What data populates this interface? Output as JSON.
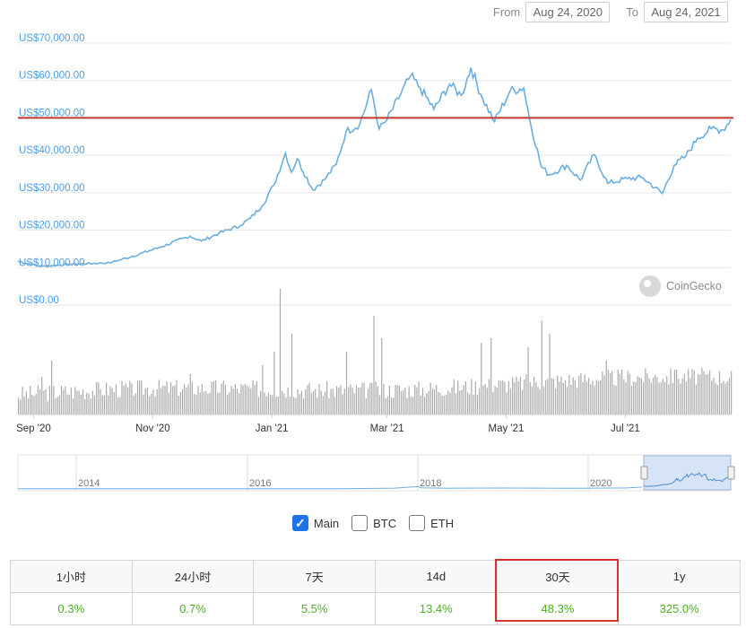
{
  "range": {
    "from_label": "From",
    "from_value": "Aug 24, 2020",
    "to_label": "To",
    "to_value": "Aug 24, 2021"
  },
  "chart_data": {
    "type": "line",
    "ylim": [
      0,
      70000
    ],
    "ytick_labels": [
      "US$70,000.00",
      "US$60,000.00",
      "US$50,000.00",
      "US$40,000.00",
      "US$30,000.00",
      "US$20,000.00",
      "US$10,000.00",
      "US$0.00"
    ],
    "ytick_values": [
      70000,
      60000,
      50000,
      40000,
      30000,
      20000,
      10000,
      0
    ],
    "xtick_labels": [
      "Sep '20",
      "Nov '20",
      "Jan '21",
      "Mar '21",
      "May '21",
      "Jul '21"
    ],
    "xtick_dates": [
      "2020-09-01",
      "2020-11-01",
      "2021-01-01",
      "2021-03-01",
      "2021-05-01",
      "2021-07-01"
    ],
    "x_start": "2020-08-24",
    "x_end": "2021-08-24",
    "reference_line": {
      "value": 50000,
      "color": "#c0392b"
    },
    "series": [
      {
        "color": "#6aaee0",
        "points": [
          [
            "2020-08-24",
            11700
          ],
          [
            "2020-09-05",
            10300
          ],
          [
            "2020-09-20",
            10900
          ],
          [
            "2020-10-10",
            11300
          ],
          [
            "2020-10-21",
            12900
          ],
          [
            "2020-11-05",
            15500
          ],
          [
            "2020-11-20",
            18400
          ],
          [
            "2020-11-26",
            17100
          ],
          [
            "2020-12-05",
            19200
          ],
          [
            "2020-12-16",
            21300
          ],
          [
            "2020-12-21",
            23200
          ],
          [
            "2020-12-27",
            26500
          ],
          [
            "2021-01-02",
            32000
          ],
          [
            "2021-01-08",
            40600
          ],
          [
            "2021-01-11",
            35500
          ],
          [
            "2021-01-14",
            39100
          ],
          [
            "2021-01-22",
            30800
          ],
          [
            "2021-01-28",
            33500
          ],
          [
            "2021-02-03",
            37600
          ],
          [
            "2021-02-08",
            46300
          ],
          [
            "2021-02-15",
            48300
          ],
          [
            "2021-02-21",
            57500
          ],
          [
            "2021-02-25",
            47000
          ],
          [
            "2021-03-01",
            49500
          ],
          [
            "2021-03-13",
            61200
          ],
          [
            "2021-03-18",
            58000
          ],
          [
            "2021-03-25",
            52300
          ],
          [
            "2021-04-02",
            59000
          ],
          [
            "2021-04-08",
            56000
          ],
          [
            "2021-04-13",
            63400
          ],
          [
            "2021-04-18",
            56300
          ],
          [
            "2021-04-25",
            49000
          ],
          [
            "2021-05-03",
            57200
          ],
          [
            "2021-05-10",
            58000
          ],
          [
            "2021-05-13",
            49600
          ],
          [
            "2021-05-19",
            37000
          ],
          [
            "2021-05-23",
            34800
          ],
          [
            "2021-06-01",
            37300
          ],
          [
            "2021-06-08",
            33400
          ],
          [
            "2021-06-15",
            40200
          ],
          [
            "2021-06-22",
            32500
          ],
          [
            "2021-07-02",
            33800
          ],
          [
            "2021-07-10",
            34000
          ],
          [
            "2021-07-20",
            29800
          ],
          [
            "2021-07-26",
            37300
          ],
          [
            "2021-08-01",
            39800
          ],
          [
            "2021-08-07",
            44600
          ],
          [
            "2021-08-14",
            47100
          ],
          [
            "2021-08-20",
            46800
          ],
          [
            "2021-08-24",
            49500
          ]
        ]
      }
    ],
    "volume": {
      "peaks": [
        [
          "2020-09-05",
          42
        ],
        [
          "2020-09-10",
          60
        ],
        [
          "2020-10-21",
          35
        ],
        [
          "2020-11-20",
          45
        ],
        [
          "2020-12-27",
          55
        ],
        [
          "2021-01-02",
          70
        ],
        [
          "2021-01-05",
          140
        ],
        [
          "2021-01-11",
          90
        ],
        [
          "2021-02-08",
          70
        ],
        [
          "2021-02-22",
          110
        ],
        [
          "2021-02-26",
          85
        ],
        [
          "2021-04-18",
          80
        ],
        [
          "2021-04-23",
          85
        ],
        [
          "2021-05-12",
          75
        ],
        [
          "2021-05-19",
          105
        ],
        [
          "2021-05-23",
          90
        ],
        [
          "2021-06-21",
          60
        ],
        [
          "2021-07-20",
          40
        ],
        [
          "2021-07-26",
          50
        ]
      ],
      "baseline": 22
    },
    "navigator": {
      "labels": [
        "2014",
        "2016",
        "2018",
        "2020"
      ],
      "selected_range": [
        "2020-08-24",
        "2021-08-24"
      ]
    }
  },
  "watermark": {
    "text": "CoinGecko",
    "icon": "coingecko-logo-icon"
  },
  "legend": [
    {
      "label": "Main",
      "checked": true
    },
    {
      "label": "BTC",
      "checked": false
    },
    {
      "label": "ETH",
      "checked": false
    }
  ],
  "performance": {
    "headers": [
      "1小时",
      "24小时",
      "7天",
      "14d",
      "30天",
      "1y"
    ],
    "values": [
      "0.3%",
      "0.7%",
      "5.5%",
      "13.4%",
      "48.3%",
      "325.0%"
    ],
    "highlighted": "30天",
    "value_color": "#4caf1f",
    "highlight_color": "#d23431"
  }
}
